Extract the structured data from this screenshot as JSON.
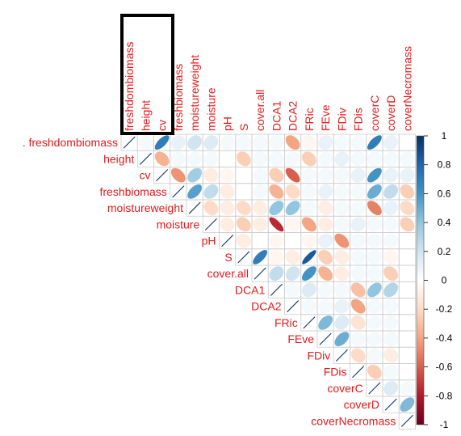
{
  "chart_data": {
    "type": "heatmap",
    "title": "",
    "variables": [
      "freshdombiomass",
      "height",
      "cv",
      "freshbiomass",
      "moistureweight",
      "moisture",
      "pH",
      "S",
      "cover.all",
      "DCA1",
      "DCA2",
      "FRic",
      "FEve",
      "FDiv",
      "FDis",
      "coverC",
      "coverD",
      "coverNecromass"
    ],
    "row_labels": [
      ". freshdombiomass",
      "height",
      "cv",
      "freshbiomass",
      "moistureweight",
      "moisture",
      "pH",
      "S",
      "cover.all",
      "DCA1",
      "DCA2",
      "FRic",
      "FEve",
      "FDiv",
      "FDis",
      "coverC",
      "coverD",
      "coverNecromass"
    ],
    "col_labels": [
      "freshdombiomass",
      "height",
      "cv",
      "freshbiomass",
      "moistureweight",
      "moisture",
      "pH",
      "S",
      "cover.all",
      "DCA1",
      "DCA2",
      "FRic",
      "FEve",
      "FDiv",
      "FDis",
      "coverC",
      "coverD",
      "coverNecromass"
    ],
    "upper_values": [
      [
        0.05,
        0.7,
        0.1,
        0.2,
        0.15,
        0.05,
        0.05,
        0.05,
        0.05,
        -0.4,
        -0.05,
        0.1,
        0.05,
        0.05,
        0.7,
        0.1,
        0.0
      ],
      [
        -0.35,
        0.05,
        0.05,
        0.05,
        0.0,
        -0.25,
        0.05,
        0.05,
        0.05,
        -0.25,
        0.05,
        0.1,
        0.05,
        0.05,
        0.05,
        0.05
      ],
      [
        -0.45,
        0.35,
        -0.1,
        -0.05,
        0.0,
        0.05,
        -0.25,
        -0.6,
        0.05,
        0.05,
        0.05,
        0.1,
        0.6,
        0.1,
        0.1
      ],
      [
        0.55,
        0.25,
        -0.1,
        0.0,
        0.05,
        -0.35,
        -0.2,
        0.05,
        0.1,
        0.05,
        0.05,
        0.5,
        0.25,
        -0.25
      ],
      [
        -0.2,
        -0.1,
        -0.2,
        -0.1,
        0.4,
        0.4,
        0.05,
        -0.1,
        0.05,
        0.05,
        -0.5,
        0.1,
        -0.2
      ],
      [
        -0.1,
        -0.25,
        -0.1,
        -0.75,
        -0.05,
        -0.4,
        -0.1,
        0.05,
        0.1,
        0.05,
        0.05,
        -0.25
      ],
      [
        -0.1,
        0.0,
        -0.05,
        0.0,
        -0.05,
        0.1,
        -0.45,
        0.05,
        0.05,
        0.05
      ],
      [
        0.7,
        -0.05,
        -0.1,
        0.85,
        -0.25,
        -0.1,
        0.05,
        0.05,
        -0.05
      ],
      [
        0.25,
        0.2,
        0.6,
        -0.35,
        -0.1,
        0.05,
        0.05,
        -0.25
      ],
      [
        0.05,
        0.15,
        0.05,
        0.05,
        -0.3,
        0.4,
        0.3
      ],
      [
        0.05,
        0.05,
        0.1,
        -0.4,
        0.05,
        0.05
      ],
      [
        0.45,
        0.15,
        -0.15,
        0.05,
        0.05
      ],
      [
        0.5,
        0.05,
        0.05,
        0.05
      ],
      [
        -0.2,
        0.05,
        -0.1
      ],
      [
        -0.25,
        0.05
      ],
      [
        0.15,
        0.05
      ],
      [
        0.45
      ]
    ],
    "highlighted_columns": [
      "freshdombiomass",
      "height",
      "cv"
    ],
    "legend": {
      "position": "right",
      "ticks": [
        "1",
        "0.8",
        "0.6",
        "0.4",
        "0.2",
        "0",
        "-0.2",
        "-0.4",
        "-0.6",
        "-0.8",
        "-1"
      ],
      "range": [
        -1,
        1
      ],
      "colors": {
        "negative": "#67001f",
        "neutral": "#ffffff",
        "positive": "#053061"
      }
    },
    "label_color": "#e31a1c",
    "grid": true
  }
}
